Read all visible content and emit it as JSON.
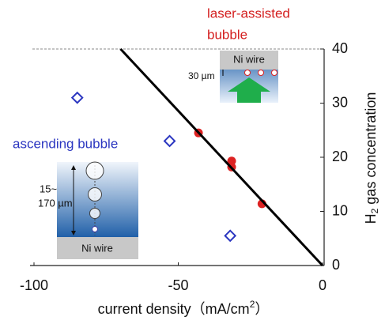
{
  "chart_data": {
    "type": "scatter",
    "annotations": {
      "laser_line1": "laser-assisted",
      "laser_line2": "bubble",
      "ascending": "ascending bubble"
    },
    "insets": [
      {
        "wire": "Ni wire",
        "size": "30 µm"
      },
      {
        "wire": "Ni wire",
        "size_line1": "15~",
        "size_line2": "170 µm"
      }
    ],
    "xlabel": {
      "main": "current density（mA/cm",
      "sup": "2",
      "end": "）"
    },
    "ylabel": {
      "main": "H",
      "sub": "2",
      "rest": " gas concentration"
    },
    "xlim": [
      -100,
      0
    ],
    "xticks": [
      -100,
      -50,
      0
    ],
    "ylim": [
      0,
      40
    ],
    "yticks": [
      0,
      10,
      20,
      30,
      40
    ],
    "series": [
      {
        "marker": "diamond",
        "color": "#2a35c0",
        "x": [
          -85,
          -53,
          -32
        ],
        "values": [
          31,
          23,
          5.5
        ]
      },
      {
        "marker": "circle",
        "color": "#dd2222",
        "x": [
          -43,
          -31.5,
          -31.5,
          -21
        ],
        "values": [
          24.5,
          19.3,
          18.2,
          11.4
        ]
      },
      {
        "marker": "line",
        "color": "#000000",
        "x": [
          -70,
          0
        ],
        "values": [
          40,
          0
        ]
      }
    ]
  }
}
